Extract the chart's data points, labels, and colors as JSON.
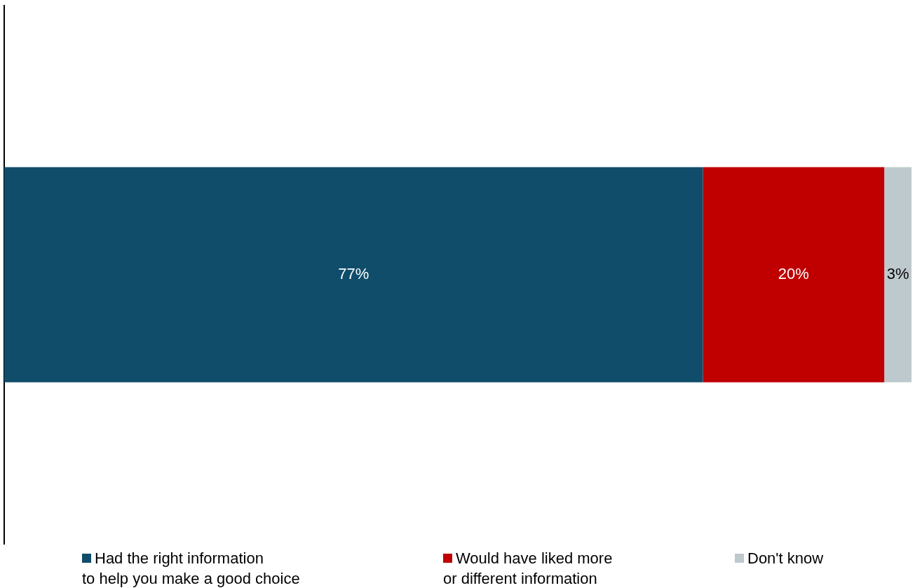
{
  "chart_data": {
    "type": "bar",
    "orientation": "horizontal",
    "stacked": true,
    "categories": [
      null
    ],
    "series": [
      {
        "name": "Had the right information\nto help you make a good choice",
        "color": "#0f4d6a",
        "values": [
          77
        ],
        "value_labels": [
          "77%"
        ]
      },
      {
        "name": "Would have liked more\nor different information",
        "color": "#c00000",
        "values": [
          20
        ],
        "value_labels": [
          "20%"
        ]
      },
      {
        "name": "Don't know",
        "color": "#bec9ce",
        "values": [
          3
        ],
        "value_labels": [
          "3%"
        ]
      }
    ],
    "legend": "bottom"
  }
}
